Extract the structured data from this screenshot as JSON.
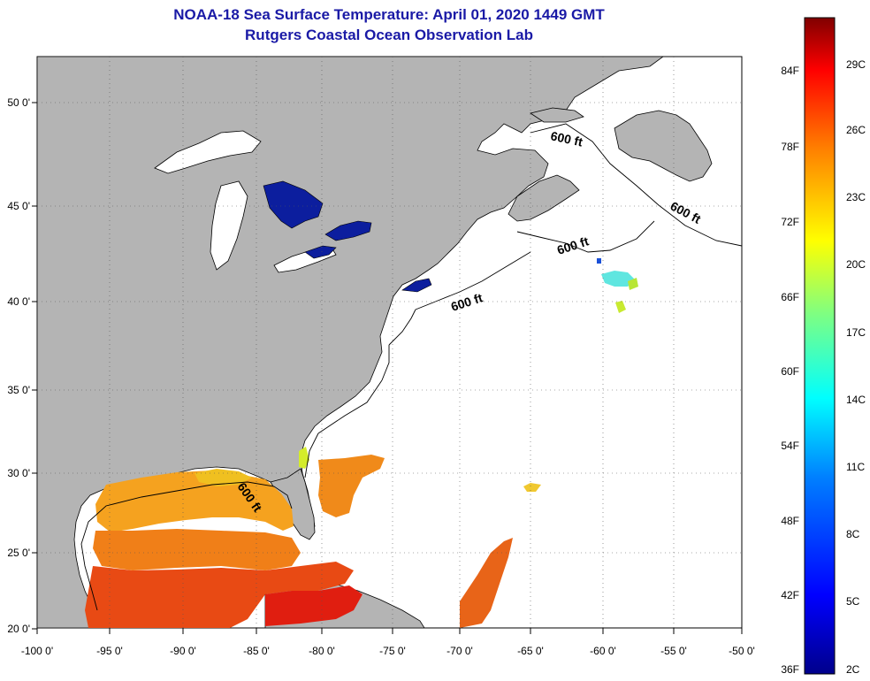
{
  "title": "NOAA-18 Sea Surface Temperature:  April 01, 2020 1449 GMT",
  "subtitle": "Rutgers Coastal Ocean Observation Lab",
  "lat_labels": [
    "50 0'",
    "45 0'",
    "40 0'",
    "35 0'",
    "30 0'",
    "25 0'",
    "20 0'"
  ],
  "lon_labels": [
    "-100 0'",
    "-95 0'",
    "-90 0'",
    "-85 0'",
    "-80 0'",
    "-75 0'",
    "-70 0'",
    "-65 0'",
    "-60 0'",
    "-55 0'",
    "-50 0'"
  ],
  "contour_label": "600 ft",
  "colorbar": {
    "fahrenheit": [
      "84F",
      "78F",
      "72F",
      "66F",
      "60F",
      "54F",
      "48F",
      "42F",
      "36F"
    ],
    "celsius": [
      "29C",
      "26C",
      "23C",
      "20C",
      "17C",
      "14C",
      "11C",
      "8C",
      "5C",
      "2C"
    ]
  },
  "colors": {
    "title": "#1a1aa6",
    "land": "#b4b4b4",
    "ocean": "#ffffff",
    "cold_lake": "#0c1e9e"
  }
}
